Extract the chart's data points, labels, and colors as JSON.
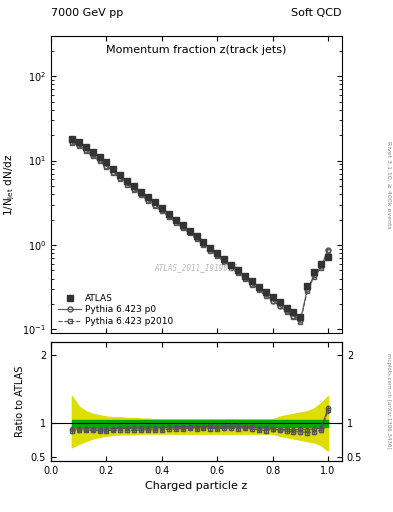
{
  "title_top_left": "7000 GeV pp",
  "title_top_right": "Soft QCD",
  "plot_title": "Momentum fraction z(track jets)",
  "ylabel_main": "1/N$_{jet}$ dN/dz",
  "ylabel_ratio": "Ratio to ATLAS",
  "xlabel": "Charged particle z",
  "ylabel_right_main": "Rivet 3.1.10, ≥ 400k events",
  "ylabel_right_ratio": "mcplots.cern.ch [arXiv:1306.3436]",
  "watermark": "ATLAS_2011_I919017",
  "xlim": [
    0.0,
    1.05
  ],
  "ylim_main": [
    0.09,
    300
  ],
  "ylim_ratio": [
    0.45,
    2.2
  ],
  "z_values": [
    0.075,
    0.1,
    0.125,
    0.15,
    0.175,
    0.2,
    0.225,
    0.25,
    0.275,
    0.3,
    0.325,
    0.35,
    0.375,
    0.4,
    0.425,
    0.45,
    0.475,
    0.5,
    0.525,
    0.55,
    0.575,
    0.6,
    0.625,
    0.65,
    0.675,
    0.7,
    0.725,
    0.75,
    0.775,
    0.8,
    0.825,
    0.85,
    0.875,
    0.9,
    0.925,
    0.95,
    0.975,
    1.0
  ],
  "atlas_y": [
    18.0,
    16.5,
    14.5,
    12.5,
    11.0,
    9.5,
    8.0,
    6.8,
    5.8,
    5.0,
    4.3,
    3.7,
    3.2,
    2.75,
    2.35,
    2.0,
    1.72,
    1.48,
    1.27,
    1.09,
    0.93,
    0.8,
    0.68,
    0.58,
    0.5,
    0.43,
    0.37,
    0.32,
    0.28,
    0.24,
    0.21,
    0.18,
    0.16,
    0.14,
    0.33,
    0.48,
    0.6,
    0.72
  ],
  "atlas_yerr": [
    0.5,
    0.4,
    0.35,
    0.3,
    0.25,
    0.22,
    0.18,
    0.15,
    0.13,
    0.11,
    0.09,
    0.08,
    0.07,
    0.06,
    0.05,
    0.04,
    0.04,
    0.035,
    0.03,
    0.025,
    0.022,
    0.019,
    0.016,
    0.014,
    0.012,
    0.01,
    0.009,
    0.008,
    0.007,
    0.006,
    0.005,
    0.005,
    0.004,
    0.004,
    0.01,
    0.015,
    0.02,
    0.025
  ],
  "p0_y": [
    16.5,
    15.2,
    13.3,
    11.5,
    10.1,
    8.7,
    7.4,
    6.3,
    5.4,
    4.65,
    4.0,
    3.45,
    3.0,
    2.58,
    2.22,
    1.9,
    1.64,
    1.41,
    1.21,
    1.04,
    0.89,
    0.76,
    0.65,
    0.56,
    0.48,
    0.41,
    0.35,
    0.3,
    0.26,
    0.22,
    0.19,
    0.165,
    0.145,
    0.128,
    0.3,
    0.44,
    0.56,
    0.88
  ],
  "p2010_y": [
    16.0,
    14.8,
    13.0,
    11.2,
    9.8,
    8.5,
    7.2,
    6.1,
    5.2,
    4.5,
    3.88,
    3.35,
    2.9,
    2.5,
    2.15,
    1.84,
    1.59,
    1.37,
    1.17,
    1.01,
    0.86,
    0.74,
    0.63,
    0.54,
    0.46,
    0.4,
    0.34,
    0.29,
    0.25,
    0.22,
    0.19,
    0.16,
    0.14,
    0.123,
    0.285,
    0.42,
    0.54,
    0.86
  ],
  "band_green_upper": [
    1.05,
    1.05,
    1.05,
    1.05,
    1.05,
    1.05,
    1.05,
    1.05,
    1.05,
    1.05,
    1.05,
    1.05,
    1.05,
    1.05,
    1.05,
    1.05,
    1.05,
    1.05,
    1.05,
    1.05,
    1.05,
    1.05,
    1.05,
    1.05,
    1.05,
    1.05,
    1.05,
    1.05,
    1.05,
    1.05,
    1.05,
    1.05,
    1.05,
    1.05,
    1.05,
    1.05,
    1.05,
    1.05
  ],
  "band_green_lower": [
    0.95,
    0.95,
    0.95,
    0.95,
    0.95,
    0.95,
    0.95,
    0.95,
    0.95,
    0.95,
    0.95,
    0.95,
    0.95,
    0.95,
    0.95,
    0.95,
    0.95,
    0.95,
    0.95,
    0.95,
    0.95,
    0.95,
    0.95,
    0.95,
    0.95,
    0.95,
    0.95,
    0.95,
    0.95,
    0.95,
    0.95,
    0.95,
    0.95,
    0.95,
    0.95,
    0.95,
    0.95,
    0.95
  ],
  "band_yellow_upper": [
    1.4,
    1.25,
    1.18,
    1.14,
    1.12,
    1.1,
    1.09,
    1.09,
    1.08,
    1.08,
    1.07,
    1.07,
    1.06,
    1.06,
    1.06,
    1.06,
    1.06,
    1.06,
    1.06,
    1.06,
    1.06,
    1.06,
    1.06,
    1.06,
    1.06,
    1.06,
    1.06,
    1.06,
    1.06,
    1.06,
    1.1,
    1.12,
    1.14,
    1.16,
    1.18,
    1.22,
    1.3,
    1.4
  ],
  "band_yellow_lower": [
    0.65,
    0.7,
    0.74,
    0.78,
    0.8,
    0.82,
    0.83,
    0.84,
    0.84,
    0.84,
    0.85,
    0.85,
    0.85,
    0.85,
    0.85,
    0.85,
    0.85,
    0.85,
    0.85,
    0.85,
    0.85,
    0.85,
    0.85,
    0.85,
    0.85,
    0.85,
    0.85,
    0.85,
    0.85,
    0.85,
    0.82,
    0.8,
    0.78,
    0.76,
    0.74,
    0.72,
    0.68,
    0.6
  ],
  "atlas_color": "#333333",
  "p0_color": "#555555",
  "p2010_color": "#555555",
  "green_band_color": "#00aa00",
  "yellow_band_color": "#dddd00",
  "background_color": "#ffffff"
}
